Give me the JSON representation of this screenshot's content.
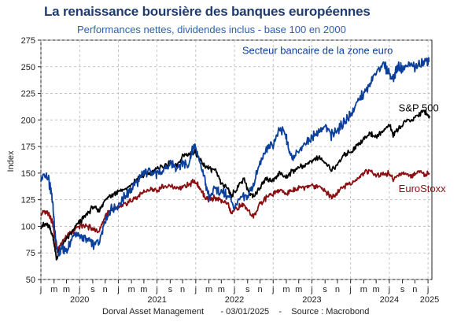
{
  "chart_data": {
    "type": "line",
    "title": "La renaissance boursière des banques européennes",
    "subtitle": "Performances nettes, dividendes inclus - base 100 en 2000",
    "ylabel": "Index",
    "ylim": [
      50,
      275
    ],
    "yticks": [
      50,
      75,
      100,
      125,
      150,
      175,
      200,
      225,
      250,
      275
    ],
    "xlim": [
      2020.0,
      2025.05
    ],
    "month_ticks": [
      {
        "t": 2020.0,
        "label": "j"
      },
      {
        "t": 2020.17,
        "label": "m"
      },
      {
        "t": 2020.33,
        "label": "m"
      },
      {
        "t": 2020.5,
        "label": "j"
      },
      {
        "t": 2020.67,
        "label": "s"
      },
      {
        "t": 2020.83,
        "label": "n"
      },
      {
        "t": 2021.0,
        "label": "j"
      },
      {
        "t": 2021.17,
        "label": "m"
      },
      {
        "t": 2021.33,
        "label": "m"
      },
      {
        "t": 2021.5,
        "label": "j"
      },
      {
        "t": 2021.67,
        "label": "s"
      },
      {
        "t": 2021.83,
        "label": "n"
      },
      {
        "t": 2022.0,
        "label": "j"
      },
      {
        "t": 2022.17,
        "label": "m"
      },
      {
        "t": 2022.33,
        "label": "m"
      },
      {
        "t": 2022.5,
        "label": "j"
      },
      {
        "t": 2022.67,
        "label": "s"
      },
      {
        "t": 2022.83,
        "label": "n"
      },
      {
        "t": 2023.0,
        "label": "j"
      },
      {
        "t": 2023.17,
        "label": "m"
      },
      {
        "t": 2023.33,
        "label": "m"
      },
      {
        "t": 2023.5,
        "label": "j"
      },
      {
        "t": 2023.67,
        "label": "s"
      },
      {
        "t": 2023.83,
        "label": "n"
      },
      {
        "t": 2024.0,
        "label": "j"
      },
      {
        "t": 2024.17,
        "label": "m"
      },
      {
        "t": 2024.33,
        "label": "m"
      },
      {
        "t": 2024.5,
        "label": "j"
      },
      {
        "t": 2024.67,
        "label": "s"
      },
      {
        "t": 2024.83,
        "label": "n"
      },
      {
        "t": 2025.0,
        "label": "j"
      }
    ],
    "year_labels": [
      {
        "t": 2020.5,
        "label": "2020"
      },
      {
        "t": 2021.5,
        "label": "2021"
      },
      {
        "t": 2022.5,
        "label": "2022"
      },
      {
        "t": 2023.5,
        "label": "2023"
      },
      {
        "t": 2024.5,
        "label": "2024"
      },
      {
        "t": 2025.02,
        "label": "2025"
      }
    ],
    "grid": true,
    "series": [
      {
        "name": "Secteur bancaire de la zone euro",
        "color": "#0b3f9c",
        "label_t": 2022.6,
        "label_v": 262,
        "points": [
          [
            2020.0,
            142
          ],
          [
            2020.05,
            148
          ],
          [
            2020.1,
            143
          ],
          [
            2020.15,
            125
          ],
          [
            2020.18,
            95
          ],
          [
            2020.22,
            72
          ],
          [
            2020.27,
            80
          ],
          [
            2020.32,
            76
          ],
          [
            2020.38,
            85
          ],
          [
            2020.45,
            94
          ],
          [
            2020.52,
            90
          ],
          [
            2020.6,
            88
          ],
          [
            2020.68,
            82
          ],
          [
            2020.76,
            86
          ],
          [
            2020.82,
            106
          ],
          [
            2020.9,
            115
          ],
          [
            2021.0,
            120
          ],
          [
            2021.08,
            127
          ],
          [
            2021.17,
            136
          ],
          [
            2021.25,
            142
          ],
          [
            2021.33,
            150
          ],
          [
            2021.42,
            153
          ],
          [
            2021.5,
            148
          ],
          [
            2021.58,
            152
          ],
          [
            2021.67,
            158
          ],
          [
            2021.75,
            155
          ],
          [
            2021.83,
            160
          ],
          [
            2021.9,
            157
          ],
          [
            2021.95,
            170
          ],
          [
            2021.99,
            176
          ],
          [
            2022.05,
            160
          ],
          [
            2022.12,
            143
          ],
          [
            2022.17,
            128
          ],
          [
            2022.25,
            135
          ],
          [
            2022.33,
            132
          ],
          [
            2022.42,
            128
          ],
          [
            2022.5,
            118
          ],
          [
            2022.58,
            125
          ],
          [
            2022.67,
            128
          ],
          [
            2022.75,
            140
          ],
          [
            2022.83,
            160
          ],
          [
            2022.92,
            172
          ],
          [
            2023.0,
            178
          ],
          [
            2023.08,
            190
          ],
          [
            2023.16,
            187
          ],
          [
            2023.2,
            172
          ],
          [
            2023.25,
            165
          ],
          [
            2023.33,
            170
          ],
          [
            2023.42,
            178
          ],
          [
            2023.5,
            183
          ],
          [
            2023.58,
            190
          ],
          [
            2023.67,
            194
          ],
          [
            2023.75,
            185
          ],
          [
            2023.83,
            190
          ],
          [
            2023.92,
            198
          ],
          [
            2024.0,
            205
          ],
          [
            2024.08,
            215
          ],
          [
            2024.17,
            225
          ],
          [
            2024.25,
            232
          ],
          [
            2024.33,
            246
          ],
          [
            2024.42,
            252
          ],
          [
            2024.5,
            245
          ],
          [
            2024.55,
            238
          ],
          [
            2024.6,
            250
          ],
          [
            2024.67,
            248
          ],
          [
            2024.75,
            252
          ],
          [
            2024.83,
            250
          ],
          [
            2024.92,
            253
          ],
          [
            2024.98,
            256
          ],
          [
            2025.02,
            255
          ]
        ]
      },
      {
        "name": "S&P 500",
        "color": "#000000",
        "label_t": 2024.62,
        "label_v": 208,
        "points": [
          [
            2020.0,
            100
          ],
          [
            2020.08,
            102
          ],
          [
            2020.12,
            98
          ],
          [
            2020.16,
            88
          ],
          [
            2020.2,
            70
          ],
          [
            2020.25,
            78
          ],
          [
            2020.33,
            88
          ],
          [
            2020.42,
            97
          ],
          [
            2020.5,
            104
          ],
          [
            2020.58,
            110
          ],
          [
            2020.67,
            118
          ],
          [
            2020.75,
            115
          ],
          [
            2020.83,
            125
          ],
          [
            2020.92,
            130
          ],
          [
            2021.0,
            133
          ],
          [
            2021.08,
            135
          ],
          [
            2021.17,
            138
          ],
          [
            2021.25,
            145
          ],
          [
            2021.33,
            148
          ],
          [
            2021.42,
            150
          ],
          [
            2021.5,
            154
          ],
          [
            2021.58,
            156
          ],
          [
            2021.67,
            160
          ],
          [
            2021.75,
            156
          ],
          [
            2021.83,
            166
          ],
          [
            2021.92,
            168
          ],
          [
            2022.0,
            170
          ],
          [
            2022.05,
            162
          ],
          [
            2022.12,
            156
          ],
          [
            2022.17,
            155
          ],
          [
            2022.25,
            152
          ],
          [
            2022.33,
            140
          ],
          [
            2022.42,
            135
          ],
          [
            2022.46,
            128
          ],
          [
            2022.55,
            138
          ],
          [
            2022.62,
            145
          ],
          [
            2022.7,
            130
          ],
          [
            2022.75,
            128
          ],
          [
            2022.83,
            138
          ],
          [
            2022.92,
            145
          ],
          [
            2023.0,
            143
          ],
          [
            2023.08,
            150
          ],
          [
            2023.17,
            146
          ],
          [
            2023.25,
            152
          ],
          [
            2023.33,
            155
          ],
          [
            2023.42,
            158
          ],
          [
            2023.5,
            162
          ],
          [
            2023.58,
            165
          ],
          [
            2023.67,
            160
          ],
          [
            2023.75,
            153
          ],
          [
            2023.83,
            158
          ],
          [
            2023.92,
            168
          ],
          [
            2024.0,
            170
          ],
          [
            2024.08,
            176
          ],
          [
            2024.17,
            182
          ],
          [
            2024.25,
            188
          ],
          [
            2024.33,
            184
          ],
          [
            2024.42,
            190
          ],
          [
            2024.5,
            195
          ],
          [
            2024.55,
            186
          ],
          [
            2024.62,
            192
          ],
          [
            2024.7,
            198
          ],
          [
            2024.8,
            200
          ],
          [
            2024.88,
            205
          ],
          [
            2024.95,
            208
          ],
          [
            2025.02,
            204
          ]
        ]
      },
      {
        "name": "EuroStoxx",
        "color": "#8b0f12",
        "label_t": 2024.62,
        "label_v": 132,
        "points": [
          [
            2020.0,
            112
          ],
          [
            2020.08,
            114
          ],
          [
            2020.12,
            110
          ],
          [
            2020.16,
            100
          ],
          [
            2020.2,
            78
          ],
          [
            2020.25,
            82
          ],
          [
            2020.33,
            90
          ],
          [
            2020.42,
            96
          ],
          [
            2020.5,
            100
          ],
          [
            2020.58,
            100
          ],
          [
            2020.67,
            98
          ],
          [
            2020.75,
            95
          ],
          [
            2020.83,
            110
          ],
          [
            2020.92,
            115
          ],
          [
            2021.0,
            117
          ],
          [
            2021.08,
            120
          ],
          [
            2021.17,
            125
          ],
          [
            2021.25,
            128
          ],
          [
            2021.33,
            132
          ],
          [
            2021.42,
            135
          ],
          [
            2021.5,
            134
          ],
          [
            2021.58,
            137
          ],
          [
            2021.67,
            138
          ],
          [
            2021.75,
            135
          ],
          [
            2021.83,
            138
          ],
          [
            2021.92,
            140
          ],
          [
            2022.0,
            142
          ],
          [
            2022.05,
            136
          ],
          [
            2022.12,
            128
          ],
          [
            2022.17,
            125
          ],
          [
            2022.25,
            127
          ],
          [
            2022.33,
            124
          ],
          [
            2022.42,
            120
          ],
          [
            2022.46,
            112
          ],
          [
            2022.55,
            118
          ],
          [
            2022.62,
            120
          ],
          [
            2022.7,
            113
          ],
          [
            2022.75,
            110
          ],
          [
            2022.83,
            120
          ],
          [
            2022.92,
            128
          ],
          [
            2023.0,
            130
          ],
          [
            2023.08,
            134
          ],
          [
            2023.17,
            130
          ],
          [
            2023.25,
            134
          ],
          [
            2023.33,
            136
          ],
          [
            2023.42,
            137
          ],
          [
            2023.5,
            138
          ],
          [
            2023.58,
            138
          ],
          [
            2023.67,
            134
          ],
          [
            2023.75,
            128
          ],
          [
            2023.83,
            132
          ],
          [
            2023.92,
            138
          ],
          [
            2024.0,
            140
          ],
          [
            2024.08,
            144
          ],
          [
            2024.17,
            150
          ],
          [
            2024.25,
            152
          ],
          [
            2024.33,
            148
          ],
          [
            2024.42,
            150
          ],
          [
            2024.5,
            150
          ],
          [
            2024.55,
            144
          ],
          [
            2024.62,
            148
          ],
          [
            2024.7,
            150
          ],
          [
            2024.8,
            147
          ],
          [
            2024.88,
            152
          ],
          [
            2024.95,
            149
          ],
          [
            2025.02,
            150
          ]
        ]
      }
    ]
  },
  "footer": "Dorval Asset Management       - 03/01/2025    -    Source : Macrobond"
}
